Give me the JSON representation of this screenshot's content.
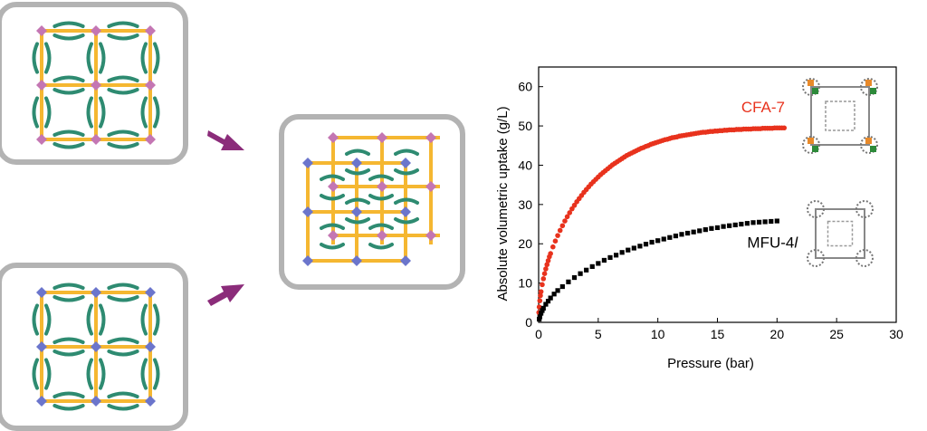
{
  "colors": {
    "linker": "#f5b731",
    "arc": "#2e8b71",
    "node_pink": "#c476b3",
    "node_blue": "#6b75cc",
    "arrow": "#8b2c7a",
    "panel_border": "#b3b3b3",
    "cfa7": "#e8321d",
    "mfu4l": "#000000"
  },
  "chart_data": {
    "type": "scatter",
    "xlabel": "Pressure (bar)",
    "ylabel": "Absolute volumetric uptake (g/L)",
    "xlim": [
      0,
      30
    ],
    "ylim": [
      0,
      65
    ],
    "xticks": [
      0,
      5,
      10,
      15,
      20,
      25,
      30
    ],
    "yticks": [
      0,
      10,
      20,
      30,
      40,
      50,
      60
    ],
    "grid": false,
    "series": [
      {
        "name": "CFA-7",
        "marker": "circle",
        "color": "#e8321d",
        "x": [
          0.02,
          0.05,
          0.1,
          0.15,
          0.2,
          0.3,
          0.4,
          0.5,
          0.6,
          0.7,
          0.8,
          0.9,
          1.0,
          1.2,
          1.4,
          1.6,
          1.8,
          2.0,
          2.2,
          2.4,
          2.6,
          2.8,
          3.0,
          3.2,
          3.4,
          3.6,
          3.8,
          4.0,
          4.2,
          4.4,
          4.6,
          4.8,
          5.0,
          5.2,
          5.4,
          5.6,
          5.8,
          6.0,
          6.2,
          6.4,
          6.6,
          6.8,
          7.0,
          7.2,
          7.4,
          7.6,
          7.8,
          8.0,
          8.2,
          8.4,
          8.6,
          8.8,
          9.0,
          9.2,
          9.4,
          9.6,
          9.8,
          10.0,
          10.2,
          10.4,
          10.6,
          10.8,
          11.0,
          11.2,
          11.4,
          11.6,
          11.8,
          12.0,
          12.2,
          12.4,
          12.6,
          12.8,
          13.0,
          13.2,
          13.4,
          13.6,
          13.8,
          14.0,
          14.2,
          14.4,
          14.6,
          14.8,
          15.0,
          15.2,
          15.4,
          15.6,
          15.8,
          16.0,
          16.2,
          16.4,
          16.6,
          16.8,
          17.0,
          17.2,
          17.4,
          17.6,
          17.8,
          18.0,
          18.2,
          18.4,
          18.6,
          18.8,
          19.0,
          19.2,
          19.4,
          19.6,
          19.8,
          20.0,
          20.2,
          20.4,
          20.6
        ],
        "y": [
          2.5,
          3.9,
          5.5,
          6.8,
          7.8,
          9.6,
          11.1,
          12.4,
          13.6,
          14.7,
          15.7,
          16.7,
          17.5,
          19.2,
          20.7,
          22.1,
          23.4,
          24.6,
          25.8,
          26.9,
          27.9,
          28.9,
          29.8,
          30.7,
          31.5,
          32.3,
          33.1,
          33.8,
          34.5,
          35.2,
          35.8,
          36.4,
          37.0,
          37.6,
          38.1,
          38.6,
          39.1,
          39.6,
          40.1,
          40.5,
          40.9,
          41.3,
          41.7,
          42.1,
          42.5,
          42.8,
          43.1,
          43.4,
          43.7,
          44.0,
          44.3,
          44.5,
          44.8,
          45.0,
          45.3,
          45.5,
          45.7,
          45.9,
          46.1,
          46.3,
          46.5,
          46.6,
          46.8,
          47.0,
          47.1,
          47.2,
          47.4,
          47.5,
          47.6,
          47.7,
          47.8,
          47.9,
          48.0,
          48.1,
          48.2,
          48.3,
          48.4,
          48.4,
          48.5,
          48.6,
          48.6,
          48.7,
          48.7,
          48.8,
          48.8,
          48.9,
          48.9,
          49.0,
          49.0,
          49.0,
          49.1,
          49.1,
          49.1,
          49.2,
          49.2,
          49.2,
          49.2,
          49.3,
          49.3,
          49.3,
          49.3,
          49.4,
          49.4,
          49.4,
          49.4,
          49.4,
          49.5,
          49.5,
          49.5,
          49.5,
          49.5
        ]
      },
      {
        "name": "MFU-4l",
        "marker": "square",
        "color": "#000000",
        "x": [
          0.05,
          0.1,
          0.2,
          0.3,
          0.4,
          0.6,
          0.8,
          1.0,
          1.3,
          1.6,
          2.0,
          2.5,
          3.0,
          3.5,
          4.0,
          4.5,
          5.0,
          5.5,
          6.0,
          6.5,
          7.0,
          7.5,
          8.0,
          8.5,
          9.0,
          9.5,
          10.0,
          10.5,
          11.0,
          11.5,
          12.0,
          12.5,
          13.0,
          13.5,
          14.0,
          14.5,
          15.0,
          15.5,
          16.0,
          16.5,
          17.0,
          17.5,
          18.0,
          18.5,
          19.0,
          19.5,
          20.0
        ],
        "y": [
          0.8,
          1.4,
          2.3,
          3.0,
          3.6,
          4.6,
          5.4,
          6.2,
          7.2,
          8.1,
          9.1,
          10.3,
          11.4,
          12.4,
          13.3,
          14.2,
          15.0,
          15.8,
          16.5,
          17.1,
          17.8,
          18.4,
          18.9,
          19.4,
          19.9,
          20.4,
          20.8,
          21.2,
          21.6,
          22.0,
          22.4,
          22.7,
          23.0,
          23.3,
          23.6,
          23.9,
          24.1,
          24.4,
          24.6,
          24.8,
          25.0,
          25.2,
          25.4,
          25.5,
          25.6,
          25.7,
          25.8
        ]
      }
    ],
    "annotations": [
      {
        "text": "CFA-7",
        "color": "#e8321d",
        "x": 17.0,
        "y": 53.5
      },
      {
        "text": "MFU-4",
        "suffix": "l",
        "color": "#000000",
        "x": 17.5,
        "y": 19.0
      }
    ]
  }
}
